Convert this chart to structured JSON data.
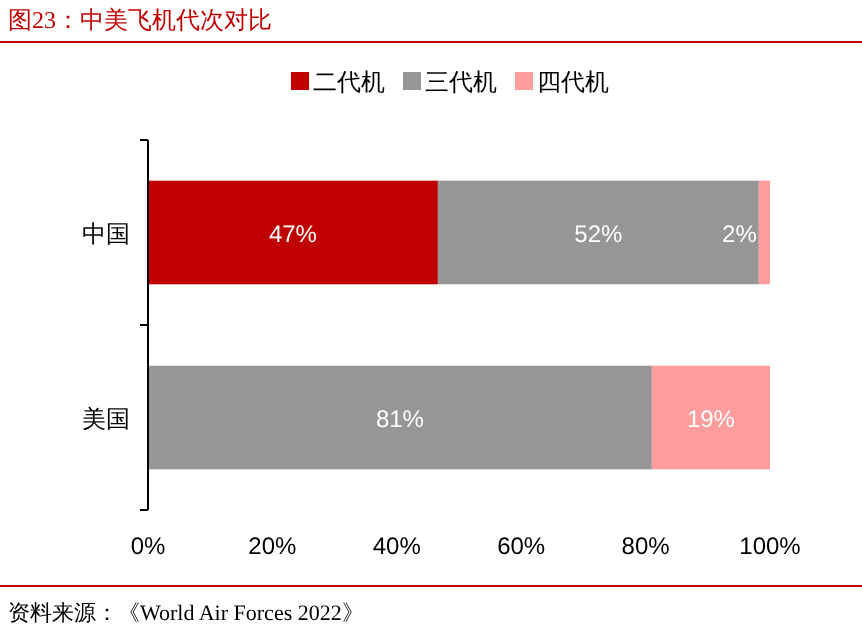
{
  "chart_data": {
    "type": "bar",
    "orientation": "horizontal",
    "stacked": true,
    "title": "图23：中美飞机代次对比",
    "categories": [
      "中国",
      "美国"
    ],
    "series": [
      {
        "name": "二代机",
        "color": "#c00000",
        "values": [
          46.6,
          0
        ],
        "value_labels": [
          "47%",
          null
        ]
      },
      {
        "name": "三代机",
        "color": "#969696",
        "values": [
          51.6,
          81
        ],
        "value_labels": [
          "52%",
          "81%"
        ]
      },
      {
        "name": "四代机",
        "color": "#ff9c9c",
        "values": [
          1.8,
          19
        ],
        "value_labels": [
          "2%",
          "19%"
        ]
      }
    ],
    "xlim": [
      0,
      100
    ],
    "xticks": [
      {
        "value": 0,
        "label": "0%"
      },
      {
        "value": 20,
        "label": "20%"
      },
      {
        "value": 40,
        "label": "40%"
      },
      {
        "value": 60,
        "label": "60%"
      },
      {
        "value": 80,
        "label": "80%"
      },
      {
        "value": 100,
        "label": "100%"
      }
    ],
    "legend": "top",
    "grid": false,
    "annotations": [
      "资料来源：《World Air Forces 2022》"
    ]
  }
}
